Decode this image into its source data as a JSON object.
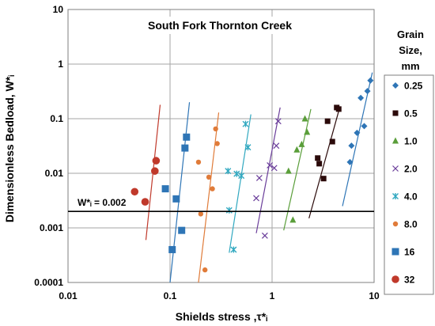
{
  "chart_data": {
    "type": "scatter",
    "title": "South Fork Thornton Creek",
    "xlabel": "Shields stress ,τ*ᵢ",
    "ylabel": "Dimensionless Bedload, W*ᵢ",
    "x_scale": "log",
    "y_scale": "log",
    "xlim": [
      0.01,
      10
    ],
    "ylim": [
      0.0001,
      10
    ],
    "x_ticks": [
      "0.01",
      "0.1",
      "1",
      "10"
    ],
    "y_ticks": [
      "0.0001",
      "0.001",
      "0.01",
      "0.1",
      "1",
      "10"
    ],
    "grid": true,
    "legend_title": "Grain Size, mm",
    "legend_position": "right",
    "reference_line": {
      "label": "W*ᵢ = 0.002",
      "y": 0.002
    },
    "series": [
      {
        "name": "0.25",
        "marker": "diamond",
        "color": "#2e75b6",
        "points": [
          [
            5.8,
            0.016
          ],
          [
            6.0,
            0.032
          ],
          [
            6.8,
            0.055
          ],
          [
            7.4,
            0.24
          ],
          [
            8.0,
            0.073
          ],
          [
            8.6,
            0.32
          ],
          [
            9.2,
            0.5
          ]
        ],
        "fit": [
          [
            4.9,
            0.0025
          ],
          [
            9.6,
            0.7
          ]
        ]
      },
      {
        "name": "0.5",
        "marker": "square",
        "color": "#2b0a0a",
        "points": [
          [
            2.8,
            0.019
          ],
          [
            2.9,
            0.015
          ],
          [
            3.2,
            0.008
          ],
          [
            3.5,
            0.09
          ],
          [
            3.9,
            0.038
          ],
          [
            4.3,
            0.16
          ],
          [
            4.5,
            0.15
          ]
        ],
        "fit": [
          [
            2.3,
            0.0015
          ],
          [
            4.6,
            0.16
          ]
        ]
      },
      {
        "name": "1.0",
        "marker": "triangle",
        "color": "#5a9e3a",
        "points": [
          [
            1.45,
            0.011
          ],
          [
            1.6,
            0.0014
          ],
          [
            1.75,
            0.027
          ],
          [
            1.95,
            0.034
          ],
          [
            2.1,
            0.1
          ],
          [
            2.2,
            0.057
          ]
        ],
        "fit": [
          [
            1.3,
            0.0009
          ],
          [
            2.4,
            0.15
          ]
        ]
      },
      {
        "name": "2.0",
        "marker": "x",
        "color": "#6a3d9a",
        "points": [
          [
            0.7,
            0.0035
          ],
          [
            0.75,
            0.0082
          ],
          [
            0.85,
            0.00072
          ],
          [
            0.95,
            0.014
          ],
          [
            1.05,
            0.0125
          ],
          [
            1.1,
            0.032
          ],
          [
            1.15,
            0.09
          ]
        ],
        "fit": [
          [
            0.7,
            0.0008
          ],
          [
            1.2,
            0.16
          ]
        ]
      },
      {
        "name": "4.0",
        "marker": "star",
        "color": "#30a8c0",
        "points": [
          [
            0.37,
            0.011
          ],
          [
            0.38,
            0.0021
          ],
          [
            0.42,
            0.0004
          ],
          [
            0.45,
            0.0098
          ],
          [
            0.5,
            0.009
          ],
          [
            0.55,
            0.08
          ],
          [
            0.58,
            0.03
          ]
        ],
        "fit": [
          [
            0.38,
            0.00035
          ],
          [
            0.62,
            0.12
          ]
        ]
      },
      {
        "name": "8.0",
        "marker": "circle",
        "color": "#e07b39",
        "points": [
          [
            0.19,
            0.016
          ],
          [
            0.2,
            0.0018
          ],
          [
            0.22,
            0.00017
          ],
          [
            0.24,
            0.0085
          ],
          [
            0.26,
            0.0052
          ],
          [
            0.28,
            0.065
          ],
          [
            0.29,
            0.035
          ]
        ],
        "fit": [
          [
            0.19,
            0.0001
          ],
          [
            0.3,
            0.13
          ]
        ]
      },
      {
        "name": "16",
        "marker": "square-big",
        "color": "#2e75b6",
        "points": [
          [
            0.09,
            0.0052
          ],
          [
            0.105,
            0.0004
          ],
          [
            0.115,
            0.0034
          ],
          [
            0.13,
            0.0009
          ],
          [
            0.14,
            0.029
          ],
          [
            0.145,
            0.046
          ]
        ],
        "fit": [
          [
            0.1,
            0.0001
          ],
          [
            0.155,
            0.2
          ]
        ]
      },
      {
        "name": "32",
        "marker": "circle-big",
        "color": "#c0392b",
        "points": [
          [
            0.045,
            0.0046
          ],
          [
            0.057,
            0.003
          ],
          [
            0.071,
            0.011
          ],
          [
            0.073,
            0.017
          ]
        ],
        "fit": [
          [
            0.058,
            0.0006
          ],
          [
            0.08,
            0.18
          ]
        ]
      }
    ]
  }
}
